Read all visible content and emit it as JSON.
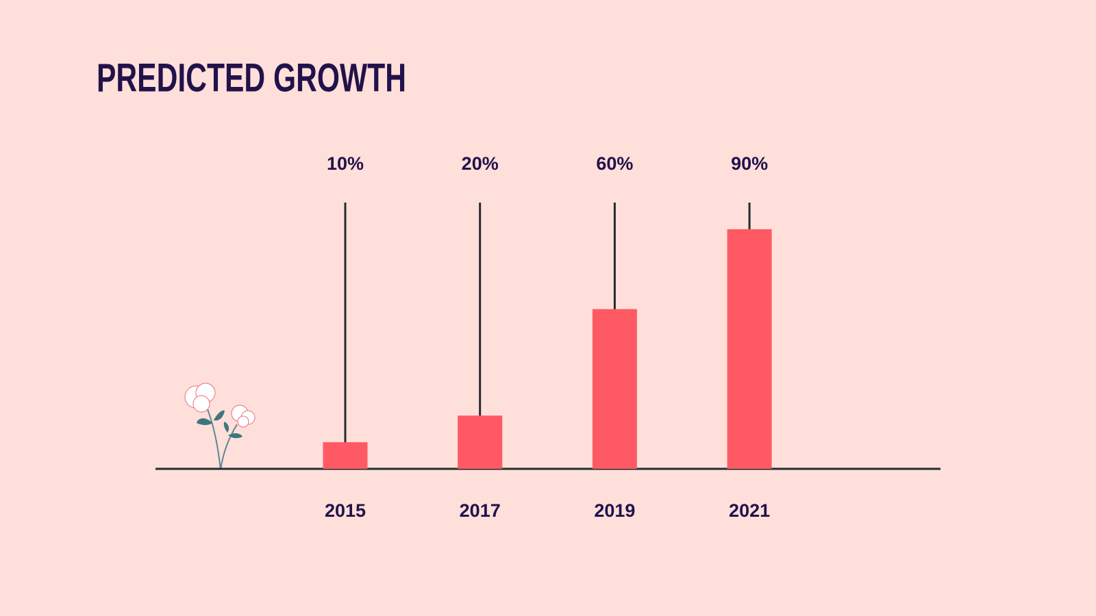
{
  "chart_data": {
    "type": "bar",
    "title": "PREDICTED GROWTH",
    "categories": [
      "2015",
      "2017",
      "2019",
      "2021"
    ],
    "values": [
      10,
      20,
      60,
      90
    ],
    "value_labels": [
      "10%",
      "20%",
      "60%",
      "90%"
    ],
    "color": "#ff5a64",
    "ylim": [
      0,
      100
    ]
  }
}
